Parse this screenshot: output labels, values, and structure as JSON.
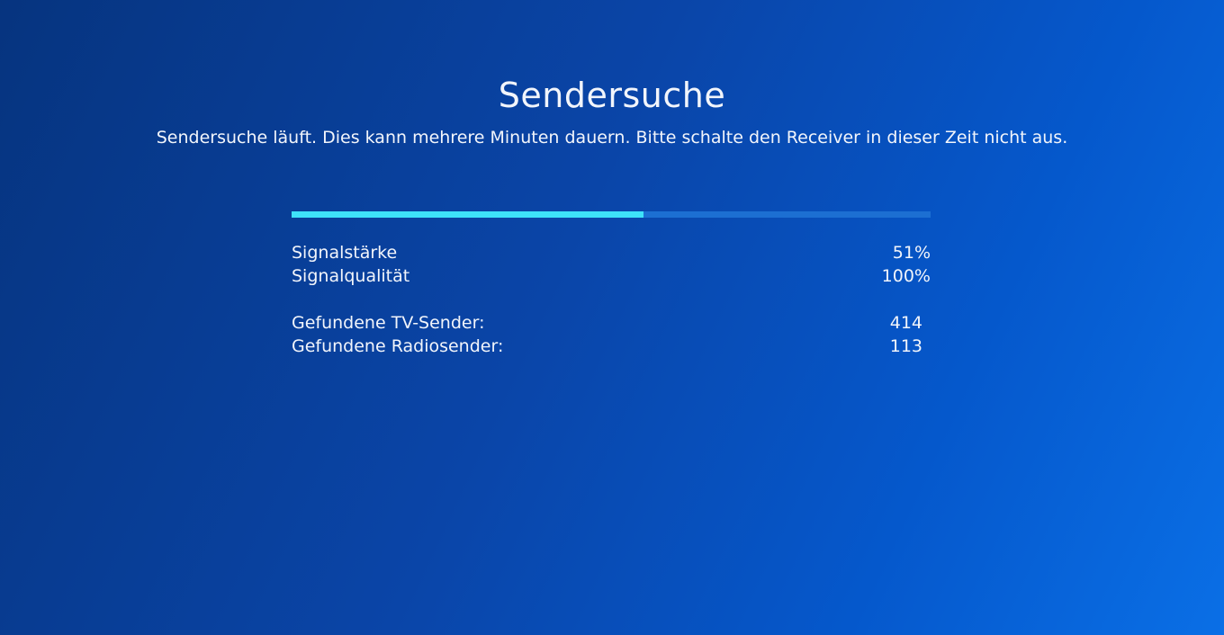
{
  "title": "Sendersuche",
  "subtitle": "Sendersuche läuft. Dies kann mehrere Minuten dauern. Bitte schalte den Receiver in dieser Zeit nicht aus.",
  "progress": {
    "percent": 55,
    "fill_color": "#3ee2f9",
    "track_color": "#1c6fd2"
  },
  "signal": [
    {
      "label": "Signalstärke",
      "value": "51%"
    },
    {
      "label": "Signalqualität",
      "value": "100%"
    }
  ],
  "found": [
    {
      "label": "Gefundene TV-Sender:",
      "value": "414"
    },
    {
      "label": "Gefundene Radiosender:",
      "value": "113"
    }
  ]
}
